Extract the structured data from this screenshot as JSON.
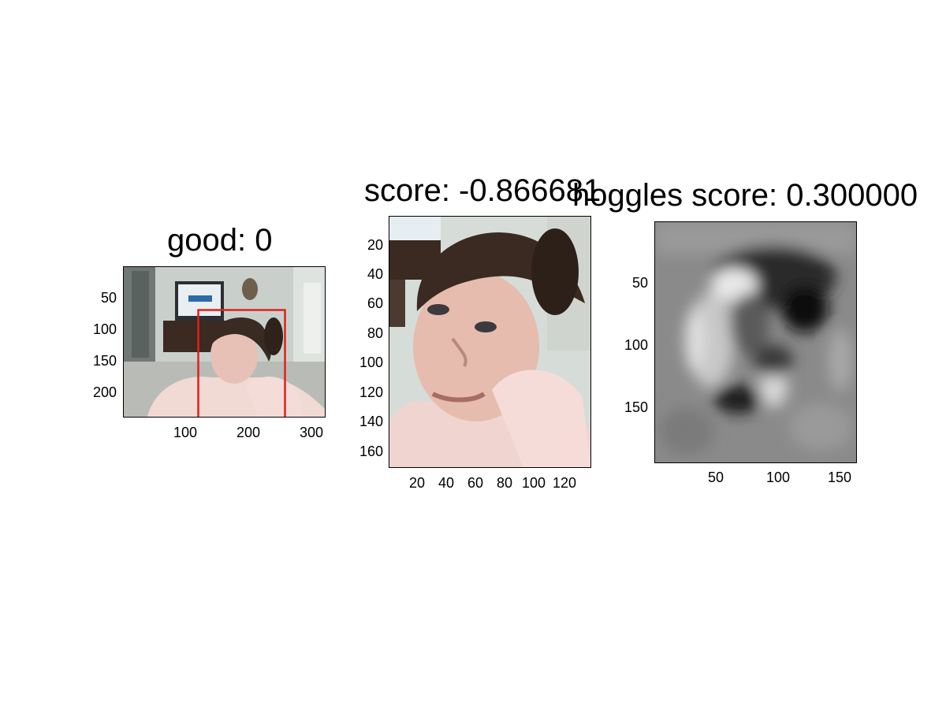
{
  "chart_data": [
    {
      "type": "image",
      "title": "good: 0",
      "xticks": [
        "100",
        "200",
        "300"
      ],
      "yticks": [
        "50",
        "100",
        "150",
        "200"
      ],
      "xlim": [
        0,
        320
      ],
      "ylim": [
        0,
        240
      ],
      "box_color": "#e0201b"
    },
    {
      "type": "image",
      "title": "score: -0.866681",
      "xticks": [
        "20",
        "40",
        "60",
        "80",
        "100",
        "120"
      ],
      "yticks": [
        "20",
        "40",
        "60",
        "80",
        "100",
        "120",
        "140",
        "160"
      ],
      "xlim": [
        0,
        138
      ],
      "ylim": [
        0,
        173
      ]
    },
    {
      "type": "heatmap",
      "title": "hoggles score: 0.300000",
      "xticks": [
        "50",
        "100",
        "150"
      ],
      "yticks": [
        "50",
        "100",
        "150"
      ],
      "xlim": [
        0,
        163
      ],
      "ylim": [
        0,
        195
      ],
      "colormap": "gray"
    }
  ]
}
